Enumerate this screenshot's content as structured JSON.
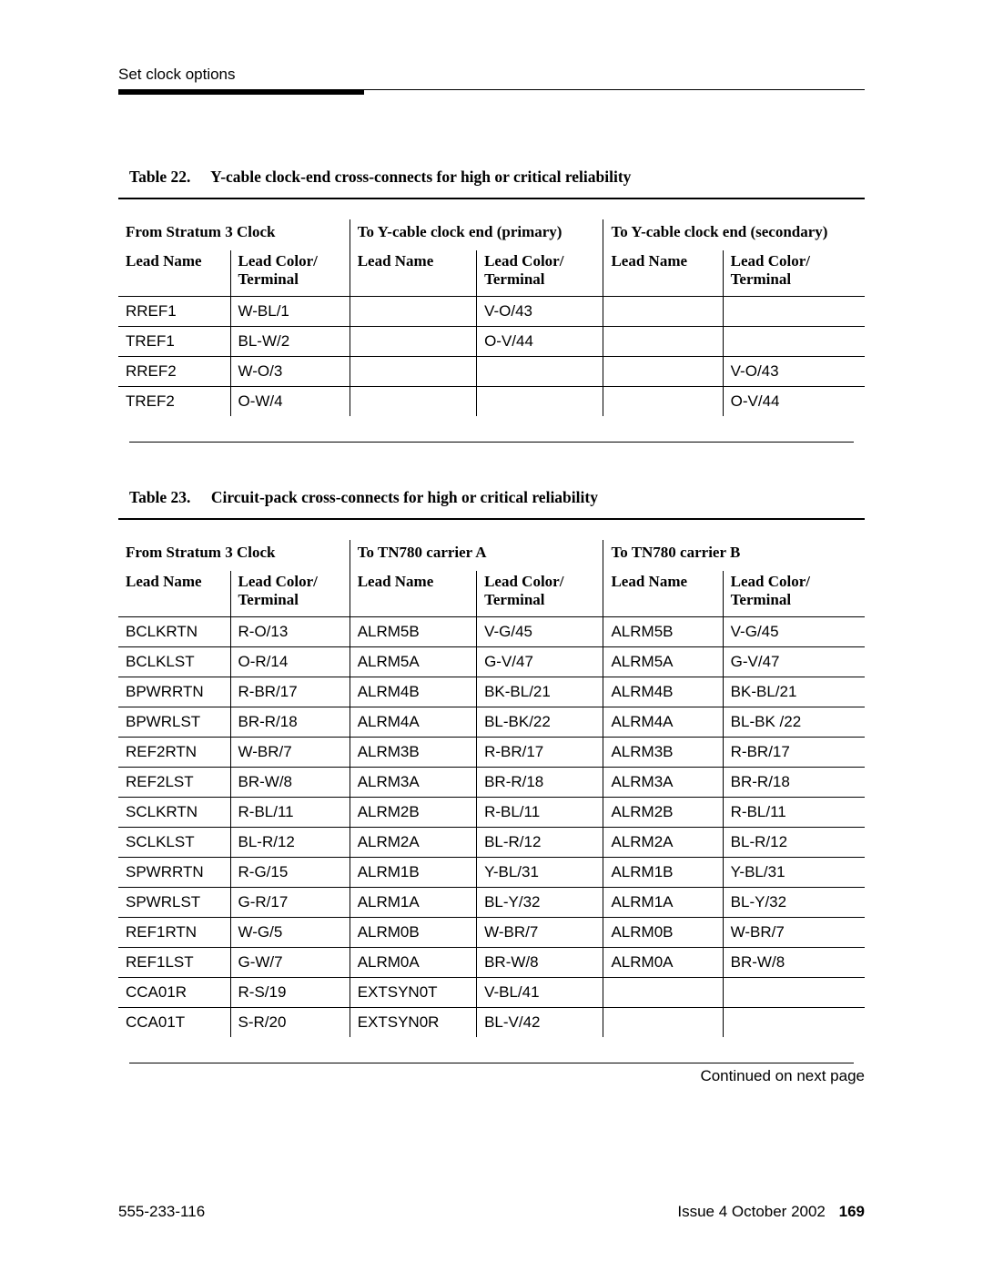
{
  "header": {
    "section_title": "Set clock options"
  },
  "table22": {
    "caption_label": "Table 22.",
    "caption_text": "Y-cable clock-end cross-connects for high or critical reliability",
    "group_headers": [
      "From Stratum 3 Clock",
      "To Y-cable clock end (primary)",
      "To Y-cable clock end (secondary)"
    ],
    "col_headers": [
      "Lead Name",
      "Lead Color/ Terminal",
      "Lead Name",
      "Lead Color/ Terminal",
      "Lead Name",
      "Lead Color/ Terminal"
    ],
    "rows": [
      [
        "RREF1",
        "W-BL/1",
        "",
        "V-O/43",
        "",
        ""
      ],
      [
        "TREF1",
        "BL-W/2",
        "",
        "O-V/44",
        "",
        ""
      ],
      [
        "RREF2",
        "W-O/3",
        "",
        "",
        "",
        "V-O/43"
      ],
      [
        "TREF2",
        "O-W/4",
        "",
        "",
        "",
        "O-V/44"
      ]
    ]
  },
  "table23": {
    "caption_label": "Table 23.",
    "caption_text": "Circuit-pack cross-connects for high or critical reliability",
    "group_headers": [
      "From Stratum 3 Clock",
      "To TN780 carrier A",
      "To TN780 carrier B"
    ],
    "col_headers": [
      "Lead Name",
      "Lead Color/ Terminal",
      "Lead Name",
      "Lead Color/ Terminal",
      "Lead Name",
      "Lead Color/ Terminal"
    ],
    "rows": [
      [
        "BCLKRTN",
        "R-O/13",
        "ALRM5B",
        "V-G/45",
        "ALRM5B",
        "V-G/45"
      ],
      [
        "BCLKLST",
        "O-R/14",
        "ALRM5A",
        "G-V/47",
        "ALRM5A",
        "G-V/47"
      ],
      [
        "BPWRRTN",
        "R-BR/17",
        "ALRM4B",
        "BK-BL/21",
        "ALRM4B",
        "BK-BL/21"
      ],
      [
        "BPWRLST",
        "BR-R/18",
        "ALRM4A",
        "BL-BK/22",
        "ALRM4A",
        "BL-BK /22"
      ],
      [
        "REF2RTN",
        "W-BR/7",
        "ALRM3B",
        "R-BR/17",
        "ALRM3B",
        "R-BR/17"
      ],
      [
        "REF2LST",
        "BR-W/8",
        "ALRM3A",
        "BR-R/18",
        "ALRM3A",
        "BR-R/18"
      ],
      [
        "SCLKRTN",
        "R-BL/11",
        "ALRM2B",
        "R-BL/11",
        "ALRM2B",
        "R-BL/11"
      ],
      [
        "SCLKLST",
        "BL-R/12",
        "ALRM2A",
        "BL-R/12",
        "ALRM2A",
        "BL-R/12"
      ],
      [
        "SPWRRTN",
        "R-G/15",
        "ALRM1B",
        "Y-BL/31",
        "ALRM1B",
        "Y-BL/31"
      ],
      [
        "SPWRLST",
        "G-R/17",
        "ALRM1A",
        "BL-Y/32",
        "ALRM1A",
        "BL-Y/32"
      ],
      [
        "REF1RTN",
        "W-G/5",
        "ALRM0B",
        "W-BR/7",
        "ALRM0B",
        "W-BR/7"
      ],
      [
        "REF1LST",
        "G-W/7",
        "ALRM0A",
        "BR-W/8",
        "ALRM0A",
        "BR-W/8"
      ],
      [
        "CCA01R",
        "R-S/19",
        "EXTSYN0T",
        "V-BL/41",
        "",
        ""
      ],
      [
        "CCA01T",
        "S-R/20",
        "EXTSYN0R",
        "BL-V/42",
        "",
        ""
      ]
    ],
    "continued_text": "Continued on next page"
  },
  "footer": {
    "doc_number": "555-233-116",
    "issue": "Issue 4  October 2002",
    "page": "169"
  },
  "style": {
    "colors": {
      "text": "#000000",
      "background": "#ffffff",
      "rule": "#000000"
    },
    "fonts": {
      "body": "Arial, Helvetica, sans-serif",
      "headings": "Georgia, Times New Roman, serif"
    },
    "col_widths_pct": [
      15,
      16,
      17,
      17,
      16,
      19
    ]
  }
}
